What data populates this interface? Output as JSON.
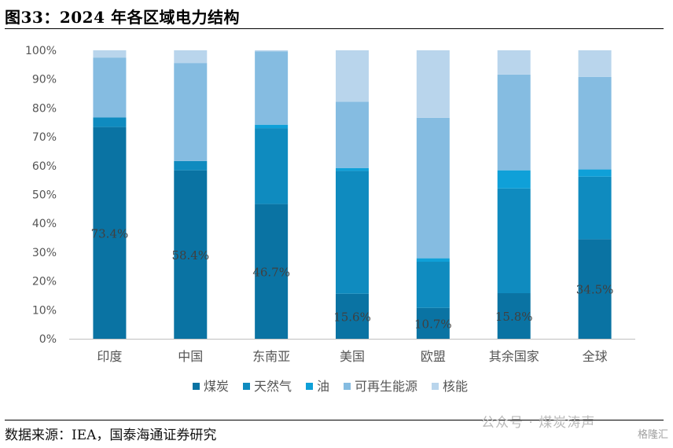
{
  "page": {
    "title": "图33：2024 年各区域电力结构",
    "source": "数据来源：IEA，国泰海通证券研究",
    "watermark": "公众号 · 煤炭涛声",
    "watermark_corner": "格隆汇"
  },
  "chart_data": {
    "type": "bar",
    "stacked": true,
    "categories": [
      "印度",
      "中国",
      "东南亚",
      "美国",
      "欧盟",
      "其余国家",
      "全球"
    ],
    "ylim": [
      0,
      100
    ],
    "yticks": [
      0,
      10,
      20,
      30,
      40,
      50,
      60,
      70,
      80,
      90,
      100
    ],
    "ytick_labels": [
      "0%",
      "10%",
      "20%",
      "30%",
      "40%",
      "50%",
      "60%",
      "70%",
      "80%",
      "90%",
      "100%"
    ],
    "legend_position": "bottom",
    "grid": false,
    "series": [
      {
        "name": "煤炭",
        "color": "#0a73a3",
        "values": [
          73.4,
          58.4,
          46.7,
          15.6,
          10.7,
          15.8,
          34.5
        ]
      },
      {
        "name": "天然气",
        "color": "#0f8bbf",
        "values": [
          3.3,
          3.2,
          26.3,
          42.6,
          16.0,
          36.3,
          21.7
        ]
      },
      {
        "name": "油",
        "color": "#0fa0d8",
        "values": [
          0.0,
          0.0,
          1.2,
          1.0,
          1.2,
          6.3,
          2.5
        ]
      },
      {
        "name": "可再生能源",
        "color": "#85bce1",
        "values": [
          20.8,
          34.0,
          25.4,
          23.0,
          48.7,
          33.2,
          32.1
        ]
      },
      {
        "name": "核能",
        "color": "#b9d5ec",
        "values": [
          2.5,
          4.4,
          0.4,
          17.8,
          23.4,
          8.4,
          9.2
        ]
      }
    ],
    "data_labels": [
      "73.4%",
      "58.4%",
      "46.7%",
      "15.6%",
      "10.7%",
      "15.8%",
      "34.5%"
    ]
  }
}
